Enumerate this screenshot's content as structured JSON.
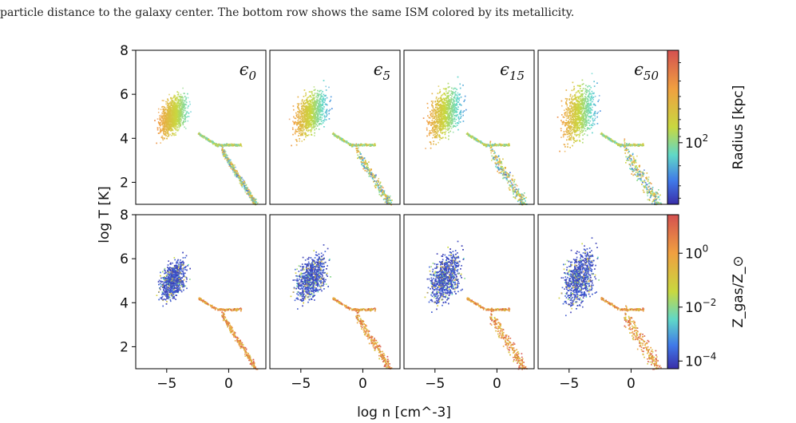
{
  "caption": "particle distance to the galaxy center. The bottom row shows the same ISM colored by its metallicity.",
  "chart_data": {
    "type": "scatter",
    "xlabel": "log n [cm^-3]",
    "ylabel": "log T [K]",
    "xlim": [
      -7.5,
      3
    ],
    "ylim": [
      1,
      8
    ],
    "xticks": [
      -5,
      0
    ],
    "xtick_labels": [
      "−5",
      "0"
    ],
    "yticks": [
      2,
      4,
      6,
      8
    ],
    "ytick_labels": [
      "2",
      "4",
      "6",
      "8"
    ],
    "grid": false,
    "panel_labels": [
      {
        "base": "ϵ",
        "sub": "0"
      },
      {
        "base": "ϵ",
        "sub": "5"
      },
      {
        "base": "ϵ",
        "sub": "15"
      },
      {
        "base": "ϵ",
        "sub": "50"
      }
    ],
    "rows": [
      {
        "color_by": "Radius",
        "colorbar_label": "Radius [kpc]",
        "colorbar_scale": "log",
        "colorbar_ticks": [
          {
            "base": "10",
            "exp": "2"
          }
        ],
        "colormap": "jet_reversed"
      },
      {
        "color_by": "Metallicity",
        "colorbar_label": "Z_gas/Z_⊙",
        "colorbar_scale": "log",
        "colorbar_ticks": [
          {
            "base": "10",
            "exp": "0"
          },
          {
            "base": "10",
            "exp": "−2"
          },
          {
            "base": "10",
            "exp": "−4"
          }
        ],
        "colormap": "jet"
      }
    ]
  }
}
